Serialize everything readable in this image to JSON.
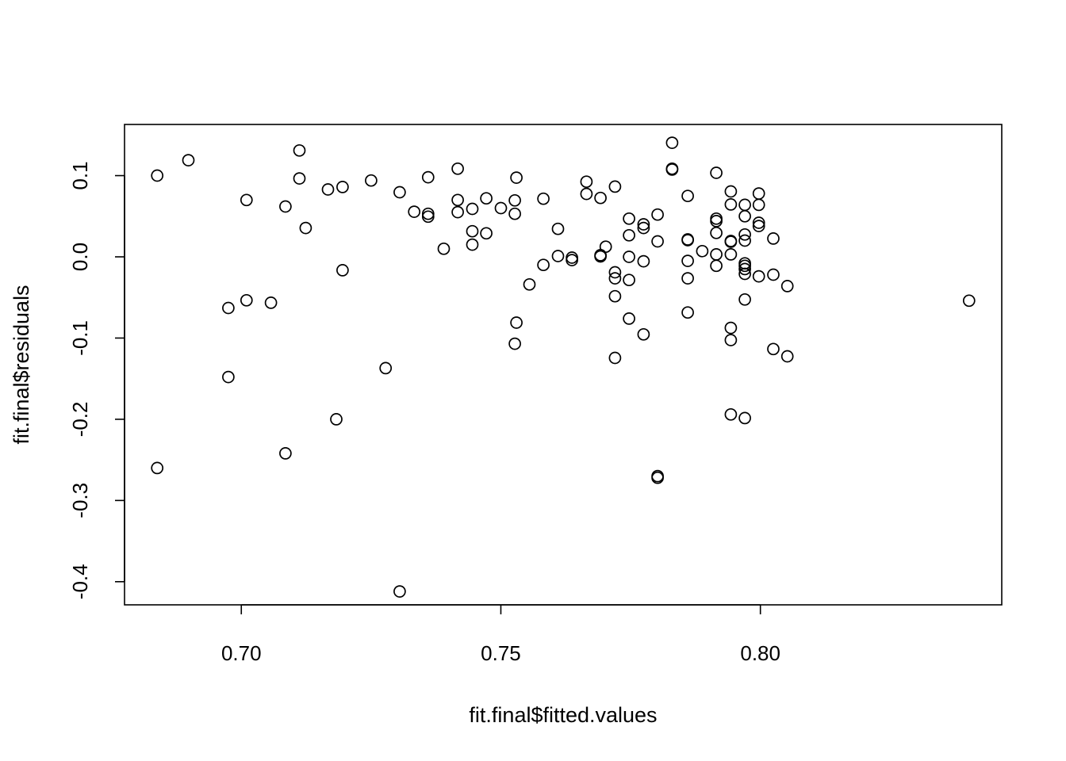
{
  "chart_data": {
    "type": "scatter",
    "title": "",
    "xlabel": "fit.final$fitted.values",
    "ylabel": "fit.final$residuals",
    "xlim": [
      0.6775,
      0.8465
    ],
    "ylim": [
      -0.4285,
      0.163
    ],
    "x_ticks": [
      0.7,
      0.75,
      0.8
    ],
    "x_tick_labels": [
      "0.70",
      "0.75",
      "0.80"
    ],
    "y_ticks": [
      -0.4,
      -0.3,
      -0.2,
      -0.1,
      0.0,
      0.1
    ],
    "y_tick_labels": [
      "-0.4",
      "-0.3",
      "-0.2",
      "-0.1",
      "0.0",
      "0.1"
    ],
    "grid": false,
    "legend": "none",
    "marker": "open-circle",
    "colors": {
      "point": "#000000",
      "frame": "#000000",
      "background": "#ffffff"
    },
    "points": [
      {
        "x": 0.6838,
        "y": 0.1
      },
      {
        "x": 0.6838,
        "y": -0.26
      },
      {
        "x": 0.6898,
        "y": 0.119
      },
      {
        "x": 0.6975,
        "y": -0.063
      },
      {
        "x": 0.6975,
        "y": -0.148
      },
      {
        "x": 0.701,
        "y": 0.07
      },
      {
        "x": 0.701,
        "y": -0.0535
      },
      {
        "x": 0.7057,
        "y": -0.0565
      },
      {
        "x": 0.7085,
        "y": 0.062
      },
      {
        "x": 0.7085,
        "y": -0.242
      },
      {
        "x": 0.7112,
        "y": 0.131
      },
      {
        "x": 0.7112,
        "y": 0.0965
      },
      {
        "x": 0.7124,
        "y": 0.0355
      },
      {
        "x": 0.7167,
        "y": 0.083
      },
      {
        "x": 0.7183,
        "y": -0.2
      },
      {
        "x": 0.7195,
        "y": 0.086
      },
      {
        "x": 0.7195,
        "y": -0.0165
      },
      {
        "x": 0.725,
        "y": 0.094
      },
      {
        "x": 0.7278,
        "y": -0.137
      },
      {
        "x": 0.7305,
        "y": 0.0795
      },
      {
        "x": 0.7305,
        "y": -0.412
      },
      {
        "x": 0.7333,
        "y": 0.0555
      },
      {
        "x": 0.736,
        "y": 0.098
      },
      {
        "x": 0.736,
        "y": 0.053
      },
      {
        "x": 0.736,
        "y": 0.0495
      },
      {
        "x": 0.739,
        "y": 0.01
      },
      {
        "x": 0.7417,
        "y": 0.1085
      },
      {
        "x": 0.7417,
        "y": 0.07
      },
      {
        "x": 0.7417,
        "y": 0.055
      },
      {
        "x": 0.7445,
        "y": 0.059
      },
      {
        "x": 0.7445,
        "y": 0.0315
      },
      {
        "x": 0.7445,
        "y": 0.015
      },
      {
        "x": 0.7472,
        "y": 0.072
      },
      {
        "x": 0.7472,
        "y": 0.029
      },
      {
        "x": 0.75,
        "y": 0.06
      },
      {
        "x": 0.7527,
        "y": 0.0695
      },
      {
        "x": 0.7527,
        "y": 0.053
      },
      {
        "x": 0.7527,
        "y": -0.107
      },
      {
        "x": 0.753,
        "y": 0.0975
      },
      {
        "x": 0.753,
        "y": -0.081
      },
      {
        "x": 0.7555,
        "y": -0.034
      },
      {
        "x": 0.7582,
        "y": 0.0715
      },
      {
        "x": 0.7582,
        "y": -0.01
      },
      {
        "x": 0.761,
        "y": 0.0345
      },
      {
        "x": 0.761,
        "y": 0.001
      },
      {
        "x": 0.7637,
        "y": -0.001
      },
      {
        "x": 0.7637,
        "y": -0.004
      },
      {
        "x": 0.7665,
        "y": 0.0925
      },
      {
        "x": 0.7665,
        "y": 0.0775
      },
      {
        "x": 0.7692,
        "y": 0.0725
      },
      {
        "x": 0.7692,
        "y": 0.002
      },
      {
        "x": 0.7692,
        "y": 0.0005
      },
      {
        "x": 0.7702,
        "y": 0.0125
      },
      {
        "x": 0.772,
        "y": 0.0865
      },
      {
        "x": 0.772,
        "y": -0.019
      },
      {
        "x": 0.772,
        "y": -0.0265
      },
      {
        "x": 0.772,
        "y": -0.0485
      },
      {
        "x": 0.772,
        "y": -0.1245
      },
      {
        "x": 0.7747,
        "y": 0.047
      },
      {
        "x": 0.7747,
        "y": 0.0265
      },
      {
        "x": 0.7747,
        "y": 0.0
      },
      {
        "x": 0.7747,
        "y": -0.0285
      },
      {
        "x": 0.7747,
        "y": -0.076
      },
      {
        "x": 0.7775,
        "y": 0.04
      },
      {
        "x": 0.7775,
        "y": 0.0355
      },
      {
        "x": 0.7775,
        "y": -0.0055
      },
      {
        "x": 0.7775,
        "y": -0.0955
      },
      {
        "x": 0.7802,
        "y": 0.052
      },
      {
        "x": 0.7802,
        "y": 0.019
      },
      {
        "x": 0.7802,
        "y": -0.27
      },
      {
        "x": 0.7802,
        "y": -0.272
      },
      {
        "x": 0.783,
        "y": 0.1405
      },
      {
        "x": 0.783,
        "y": 0.1085
      },
      {
        "x": 0.783,
        "y": 0.1075
      },
      {
        "x": 0.786,
        "y": 0.075
      },
      {
        "x": 0.786,
        "y": 0.0215
      },
      {
        "x": 0.786,
        "y": 0.0205
      },
      {
        "x": 0.786,
        "y": -0.005
      },
      {
        "x": 0.786,
        "y": -0.0265
      },
      {
        "x": 0.786,
        "y": -0.0685
      },
      {
        "x": 0.7888,
        "y": 0.007
      },
      {
        "x": 0.7915,
        "y": 0.1035
      },
      {
        "x": 0.7915,
        "y": 0.047
      },
      {
        "x": 0.7915,
        "y": 0.044
      },
      {
        "x": 0.7915,
        "y": 0.0295
      },
      {
        "x": 0.7915,
        "y": 0.003
      },
      {
        "x": 0.7915,
        "y": -0.011
      },
      {
        "x": 0.7943,
        "y": 0.0805
      },
      {
        "x": 0.7943,
        "y": 0.0645
      },
      {
        "x": 0.7943,
        "y": 0.0195
      },
      {
        "x": 0.7943,
        "y": 0.0185
      },
      {
        "x": 0.7943,
        "y": 0.003
      },
      {
        "x": 0.7943,
        "y": -0.0875
      },
      {
        "x": 0.7943,
        "y": -0.1025
      },
      {
        "x": 0.7943,
        "y": -0.194
      },
      {
        "x": 0.797,
        "y": 0.064
      },
      {
        "x": 0.797,
        "y": 0.05
      },
      {
        "x": 0.797,
        "y": 0.0275
      },
      {
        "x": 0.797,
        "y": 0.02
      },
      {
        "x": 0.797,
        "y": -0.008
      },
      {
        "x": 0.797,
        "y": -0.011
      },
      {
        "x": 0.797,
        "y": -0.015
      },
      {
        "x": 0.797,
        "y": -0.021
      },
      {
        "x": 0.797,
        "y": -0.0525
      },
      {
        "x": 0.797,
        "y": -0.1985
      },
      {
        "x": 0.7997,
        "y": 0.078
      },
      {
        "x": 0.7997,
        "y": 0.064
      },
      {
        "x": 0.7997,
        "y": 0.042
      },
      {
        "x": 0.7997,
        "y": 0.038
      },
      {
        "x": 0.7997,
        "y": -0.024
      },
      {
        "x": 0.8025,
        "y": 0.0225
      },
      {
        "x": 0.8025,
        "y": -0.022
      },
      {
        "x": 0.8025,
        "y": -0.1135
      },
      {
        "x": 0.8052,
        "y": -0.036
      },
      {
        "x": 0.8052,
        "y": -0.1225
      },
      {
        "x": 0.8402,
        "y": -0.054
      }
    ]
  }
}
